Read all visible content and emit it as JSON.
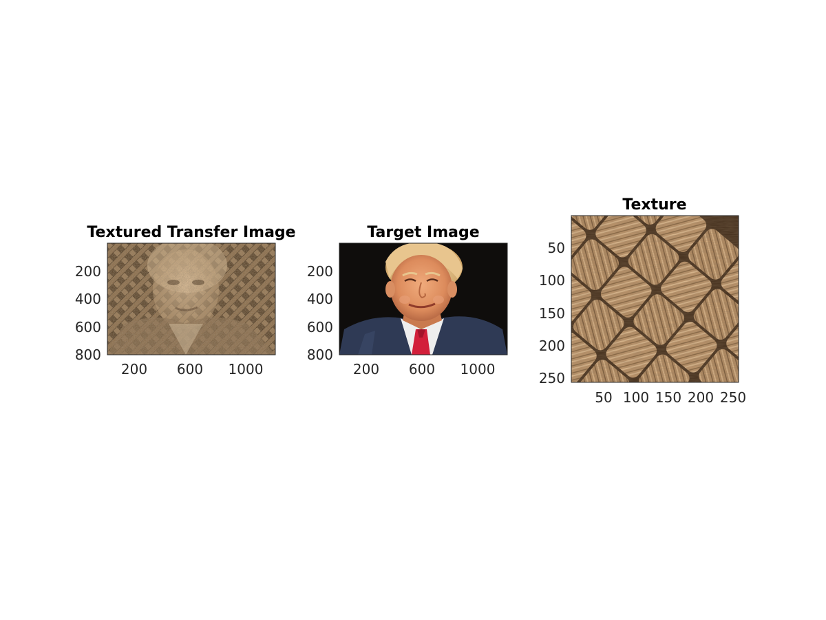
{
  "figure": {
    "panels": [
      {
        "title": "Textured Transfer Image",
        "image": "textured-portrait",
        "x_ticks": [
          "200",
          "600",
          "1000"
        ],
        "y_ticks": [
          "200",
          "400",
          "600",
          "800"
        ]
      },
      {
        "title": "Target Image",
        "image": "portrait-photo",
        "x_ticks": [
          "200",
          "600",
          "1000"
        ],
        "y_ticks": [
          "200",
          "400",
          "600",
          "800"
        ]
      },
      {
        "title": "Texture",
        "image": "woven-rope-texture",
        "x_ticks": [
          "50",
          "100",
          "150",
          "200",
          "250"
        ],
        "y_ticks": [
          "50",
          "100",
          "150",
          "200",
          "250"
        ]
      }
    ]
  },
  "colors": {
    "rope_light": "#c8a27a",
    "rope_mid": "#a67f58",
    "rope_dark": "#4a3522",
    "suit": "#2f3a55",
    "tie": "#d21f3a",
    "skin": "#e49a6e",
    "hair": "#e6c48a",
    "background_dark": "#0f0d0c"
  }
}
